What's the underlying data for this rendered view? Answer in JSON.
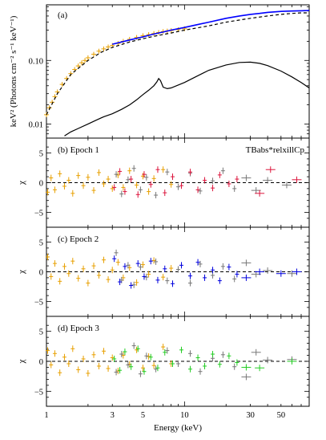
{
  "chart_data": [
    {
      "type": "line",
      "panel_label": "(a)",
      "ylabel": "keV² (Photons cm⁻² s⁻¹ keV⁻¹)",
      "xscale": "log",
      "yscale": "log",
      "xlim": [
        1,
        80
      ],
      "ylim": [
        0.006,
        0.75
      ],
      "yticks": [
        0.01,
        0.1
      ],
      "ytick_labels": [
        "0.01",
        "0.10"
      ],
      "series": [
        {
          "color": "#e8a000",
          "style": "errorbar-points",
          "x": [
            1.0,
            1.05,
            1.1,
            1.15,
            1.2,
            1.3,
            1.4,
            1.5,
            1.6,
            1.7,
            1.8,
            1.9,
            2.0,
            2.2,
            2.4,
            2.6,
            2.8,
            3.0,
            3.3,
            3.6,
            4.0,
            4.5,
            5.0,
            5.5,
            6.0,
            6.5,
            7.0,
            7.5,
            8.0,
            9.0,
            10.0
          ],
          "y": [
            0.014,
            0.018,
            0.022,
            0.027,
            0.032,
            0.042,
            0.052,
            0.062,
            0.072,
            0.082,
            0.092,
            0.1,
            0.11,
            0.125,
            0.14,
            0.152,
            0.163,
            0.172,
            0.185,
            0.2,
            0.215,
            0.23,
            0.245,
            0.255,
            0.265,
            0.275,
            0.285,
            0.29,
            0.295,
            0.305,
            0.315
          ]
        },
        {
          "color": "#0000ff",
          "style": "line",
          "x": [
            3,
            4,
            5,
            6,
            7,
            8,
            10,
            12,
            15,
            20,
            25,
            30,
            35,
            40,
            50,
            60,
            70,
            80
          ],
          "y": [
            0.18,
            0.21,
            0.235,
            0.26,
            0.28,
            0.3,
            0.33,
            0.36,
            0.4,
            0.46,
            0.5,
            0.53,
            0.55,
            0.57,
            0.59,
            0.6,
            0.605,
            0.61
          ]
        },
        {
          "color": "#000000",
          "style": "dashed",
          "x": [
            1,
            1.2,
            1.5,
            2,
            2.5,
            3,
            4,
            5,
            6,
            8,
            10,
            15,
            20,
            30,
            40,
            50,
            60,
            70,
            80
          ],
          "y": [
            0.014,
            0.03,
            0.06,
            0.1,
            0.135,
            0.16,
            0.195,
            0.22,
            0.24,
            0.27,
            0.3,
            0.35,
            0.4,
            0.46,
            0.5,
            0.53,
            0.55,
            0.56,
            0.56
          ]
        },
        {
          "color": "#000000",
          "style": "line",
          "x": [
            1.35,
            1.5,
            1.7,
            2.0,
            2.3,
            2.6,
            3.0,
            3.5,
            4.0,
            4.5,
            5.0,
            5.5,
            6.0,
            6.3,
            6.5,
            6.7,
            7.0,
            7.5,
            8.0,
            10,
            12,
            15,
            20,
            25,
            30,
            35,
            40,
            50,
            60,
            70,
            80
          ],
          "y": [
            0.0065,
            0.0075,
            0.0085,
            0.01,
            0.0115,
            0.013,
            0.0145,
            0.017,
            0.02,
            0.024,
            0.029,
            0.034,
            0.04,
            0.046,
            0.052,
            0.048,
            0.038,
            0.036,
            0.037,
            0.045,
            0.055,
            0.07,
            0.085,
            0.093,
            0.094,
            0.09,
            0.083,
            0.068,
            0.055,
            0.045,
            0.037
          ]
        }
      ]
    },
    {
      "type": "scatter",
      "panel_label": "(b)",
      "title": "Epoch 1",
      "annotation": "TBabs*relxillCp",
      "ylabel": "χ",
      "xscale": "log",
      "xlim": [
        1,
        80
      ],
      "ylim": [
        -7.5,
        7.5
      ],
      "yticks": [
        -5,
        0,
        5
      ],
      "ytick_labels": [
        "−5",
        "0",
        "5"
      ],
      "residual_color": "#dc143c",
      "points_orange": [
        [
          1.02,
          -1.6
        ],
        [
          1.08,
          0.8
        ],
        [
          1.15,
          -1.2
        ],
        [
          1.25,
          1.5
        ],
        [
          1.35,
          -0.6
        ],
        [
          1.45,
          0.4
        ],
        [
          1.55,
          -1.8
        ],
        [
          1.7,
          1.2
        ],
        [
          1.85,
          -0.5
        ],
        [
          2.0,
          0.9
        ],
        [
          2.2,
          -1.3
        ],
        [
          2.4,
          1.7
        ],
        [
          2.6,
          -0.2
        ],
        [
          2.8,
          0.6
        ],
        [
          3.0,
          -1.0
        ],
        [
          3.3,
          1.3
        ],
        [
          3.6,
          -0.8
        ],
        [
          4.0,
          2.0
        ],
        [
          4.5,
          -0.4
        ],
        [
          5.0,
          1.1
        ],
        [
          5.5,
          -1.5
        ],
        [
          6.0,
          0.7
        ],
        [
          7.0,
          2.2
        ],
        [
          8.0,
          -0.3
        ]
      ],
      "points_gray": [
        [
          3.2,
          1.4
        ],
        [
          3.5,
          -1.9
        ],
        [
          3.9,
          0.5
        ],
        [
          4.3,
          2.4
        ],
        [
          4.8,
          -1.2
        ],
        [
          5.3,
          0.9
        ],
        [
          6.2,
          -2.1
        ],
        [
          7.5,
          1.8
        ],
        [
          9.0,
          -0.7
        ],
        [
          11,
          1.6
        ],
        [
          13,
          -1.4
        ],
        [
          16,
          0.3
        ],
        [
          19,
          2.0
        ],
        [
          23,
          -1.0
        ],
        [
          28,
          0.8
        ],
        [
          33,
          -1.3
        ],
        [
          40,
          0.4
        ],
        [
          55,
          -0.4
        ]
      ],
      "points_main": [
        [
          3.1,
          -0.8
        ],
        [
          3.4,
          1.9
        ],
        [
          3.7,
          -1.5
        ],
        [
          4.1,
          0.6
        ],
        [
          4.6,
          -2.0
        ],
        [
          5.1,
          1.4
        ],
        [
          5.7,
          -0.3
        ],
        [
          6.4,
          2.2
        ],
        [
          7.2,
          -1.7
        ],
        [
          8.2,
          1.0
        ],
        [
          9.5,
          -0.5
        ],
        [
          11,
          1.8
        ],
        [
          12.5,
          -1.2
        ],
        [
          14,
          0.4
        ],
        [
          16,
          -0.9
        ],
        [
          18,
          1.3
        ],
        [
          21,
          -0.2
        ],
        [
          24,
          0.6
        ],
        [
          42,
          2.2
        ],
        [
          35,
          -1.8
        ],
        [
          65,
          0.5
        ]
      ]
    },
    {
      "type": "scatter",
      "panel_label": "(c)",
      "title": "Epoch 2",
      "ylabel": "χ",
      "xscale": "log",
      "xlim": [
        1,
        80
      ],
      "ylim": [
        -7.5,
        7.5
      ],
      "yticks": [
        -5,
        0,
        5
      ],
      "ytick_labels": [
        "−5",
        "0",
        "5"
      ],
      "residual_color": "#0000dd",
      "points_orange": [
        [
          1.02,
          2.5
        ],
        [
          1.08,
          -0.8
        ],
        [
          1.15,
          1.4
        ],
        [
          1.25,
          -1.6
        ],
        [
          1.35,
          0.9
        ],
        [
          1.45,
          -0.3
        ],
        [
          1.55,
          1.8
        ],
        [
          1.7,
          -1.1
        ],
        [
          1.85,
          0.5
        ],
        [
          2.0,
          -1.9
        ],
        [
          2.2,
          1.0
        ],
        [
          2.4,
          -0.6
        ],
        [
          2.6,
          2.0
        ],
        [
          2.8,
          -1.3
        ],
        [
          3.0,
          0.3
        ],
        [
          3.3,
          1.6
        ],
        [
          3.6,
          -1.0
        ],
        [
          4.0,
          0.7
        ],
        [
          4.5,
          -1.8
        ],
        [
          5.0,
          1.2
        ],
        [
          5.5,
          -0.4
        ],
        [
          6.0,
          1.9
        ],
        [
          7.0,
          -0.9
        ],
        [
          8.0,
          0.6
        ]
      ],
      "points_gray": [
        [
          3.2,
          3.2
        ],
        [
          3.5,
          -1.4
        ],
        [
          3.9,
          1.1
        ],
        [
          4.3,
          -2.2
        ],
        [
          4.8,
          0.8
        ],
        [
          5.3,
          -0.9
        ],
        [
          6.2,
          1.7
        ],
        [
          7.5,
          -1.5
        ],
        [
          9.0,
          0.4
        ],
        [
          11,
          -1.9
        ],
        [
          13,
          1.3
        ],
        [
          16,
          -0.6
        ],
        [
          19,
          0.9
        ],
        [
          23,
          -1.2
        ],
        [
          28,
          1.5
        ],
        [
          33,
          -0.4
        ],
        [
          40,
          0.2
        ],
        [
          60,
          -0.3
        ]
      ],
      "points_main": [
        [
          3.1,
          2.2
        ],
        [
          3.4,
          -1.7
        ],
        [
          3.7,
          0.9
        ],
        [
          4.1,
          -2.3
        ],
        [
          4.6,
          1.4
        ],
        [
          5.1,
          -0.8
        ],
        [
          5.7,
          1.8
        ],
        [
          6.4,
          -1.4
        ],
        [
          7.2,
          0.5
        ],
        [
          8.2,
          -2.0
        ],
        [
          9.5,
          1.1
        ],
        [
          11,
          -0.7
        ],
        [
          12.5,
          1.6
        ],
        [
          14,
          -1.0
        ],
        [
          16,
          0.3
        ],
        [
          18,
          -1.5
        ],
        [
          21,
          0.8
        ],
        [
          24,
          -0.4
        ],
        [
          28,
          -1.0
        ],
        [
          35,
          0.0
        ],
        [
          50,
          -0.3
        ],
        [
          65,
          0.0
        ]
      ]
    },
    {
      "type": "scatter",
      "panel_label": "(d)",
      "title": "Epoch 3",
      "ylabel": "χ",
      "xlabel": "Energy (keV)",
      "xscale": "log",
      "xlim": [
        1,
        80
      ],
      "ylim": [
        -7.5,
        7.5
      ],
      "yticks": [
        -5,
        0,
        5
      ],
      "ytick_labels": [
        "−5",
        "0",
        "5"
      ],
      "xticks": [
        1,
        3,
        5,
        10,
        30,
        50
      ],
      "xtick_labels": [
        "1",
        "3",
        "5",
        "10",
        "30",
        "50"
      ],
      "residual_color": "#22cc22",
      "points_orange": [
        [
          1.02,
          1.8
        ],
        [
          1.08,
          -0.6
        ],
        [
          1.15,
          1.3
        ],
        [
          1.25,
          -1.9
        ],
        [
          1.35,
          0.7
        ],
        [
          1.45,
          -0.4
        ],
        [
          1.55,
          2.1
        ],
        [
          1.7,
          -1.4
        ],
        [
          1.85,
          0.4
        ],
        [
          2.0,
          -2.0
        ],
        [
          2.2,
          1.1
        ],
        [
          2.4,
          -0.8
        ],
        [
          2.6,
          1.7
        ],
        [
          2.8,
          -1.2
        ],
        [
          3.0,
          0.6
        ],
        [
          3.3,
          -1.6
        ],
        [
          3.6,
          1.0
        ],
        [
          4.0,
          -0.5
        ],
        [
          4.5,
          1.9
        ],
        [
          5.0,
          -1.1
        ],
        [
          5.5,
          0.8
        ],
        [
          6.0,
          -0.7
        ],
        [
          7.0,
          2.4
        ],
        [
          8.0,
          -0.4
        ]
      ],
      "points_gray": [
        [
          3.2,
          -1.8
        ],
        [
          3.5,
          1.2
        ],
        [
          3.9,
          -0.6
        ],
        [
          4.3,
          2.6
        ],
        [
          4.8,
          -2.1
        ],
        [
          5.3,
          0.9
        ],
        [
          6.2,
          -1.3
        ],
        [
          7.5,
          1.8
        ],
        [
          9.0,
          -0.4
        ],
        [
          11,
          1.3
        ],
        [
          13,
          -1.7
        ],
        [
          16,
          0.5
        ],
        [
          19,
          1.1
        ],
        [
          23,
          -0.9
        ],
        [
          28,
          -2.6
        ],
        [
          33,
          1.5
        ],
        [
          40,
          0.2
        ],
        [
          60,
          0.3
        ]
      ],
      "points_main": [
        [
          3.1,
          0.4
        ],
        [
          3.4,
          -1.5
        ],
        [
          3.7,
          1.6
        ],
        [
          4.1,
          -0.9
        ],
        [
          4.6,
          2.1
        ],
        [
          5.1,
          -1.7
        ],
        [
          5.7,
          0.7
        ],
        [
          6.4,
          -1.1
        ],
        [
          7.2,
          1.5
        ],
        [
          8.2,
          -0.4
        ],
        [
          9.5,
          1.9
        ],
        [
          11,
          -1.3
        ],
        [
          12.5,
          0.6
        ],
        [
          14,
          -0.8
        ],
        [
          16,
          1.2
        ],
        [
          18,
          -0.5
        ],
        [
          21,
          0.9
        ],
        [
          24,
          -0.2
        ],
        [
          28,
          -1.0
        ],
        [
          35,
          -1.1
        ],
        [
          60,
          0.0
        ]
      ]
    }
  ]
}
